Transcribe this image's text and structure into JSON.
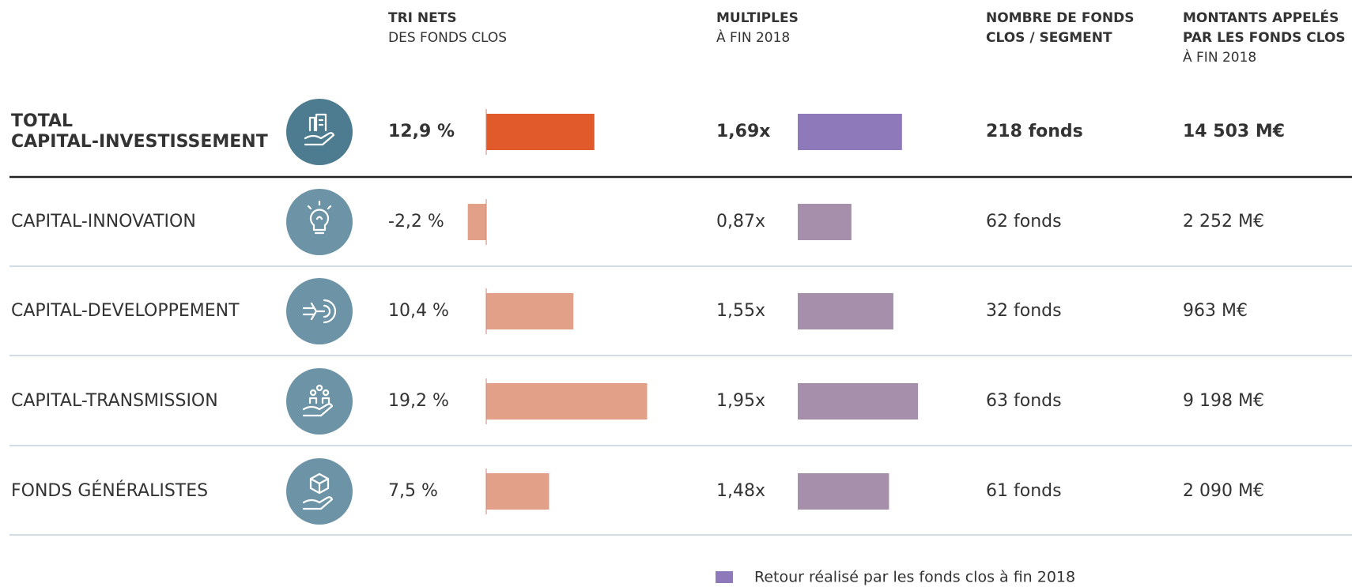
{
  "table": {
    "columns": [
      {
        "bold": [
          "TRI NETS"
        ],
        "normal": [
          "DES FONDS CLOS"
        ]
      },
      {
        "bold": [
          "MULTIPLES"
        ],
        "normal": [
          "À FIN 2018"
        ]
      },
      {
        "bold": [
          "NOMBRE DE FONDS",
          "CLOS / SEGMENT"
        ],
        "normal": []
      },
      {
        "bold": [
          "MONTANTS APPELÉS",
          "PAR LES FONDS CLOS"
        ],
        "normal": [
          "À FIN 2018"
        ]
      }
    ],
    "rows": [
      {
        "label": [
          "TOTAL",
          "CAPITAL-INVESTISSEMENT"
        ],
        "tri": {
          "value": 12.9,
          "label": "12,9 %"
        },
        "multiple": {
          "value": 1.69,
          "label": "1,69x"
        },
        "funds": "218 fonds",
        "amount": "14 503 M€"
      },
      {
        "label": [
          "CAPITAL-INNOVATION"
        ],
        "tri": {
          "value": -2.2,
          "label": "-2,2 %"
        },
        "multiple": {
          "value": 0.87,
          "label": "0,87x"
        },
        "funds": "62 fonds",
        "amount": "2 252 M€"
      },
      {
        "label": [
          "CAPITAL-DEVELOPPEMENT"
        ],
        "tri": {
          "value": 10.4,
          "label": "10,4 %"
        },
        "multiple": {
          "value": 1.55,
          "label": "1,55x"
        },
        "funds": "32 fonds",
        "amount": "963 M€"
      },
      {
        "label": [
          "CAPITAL-TRANSMISSION"
        ],
        "tri": {
          "value": 19.2,
          "label": "19,2 %"
        },
        "multiple": {
          "value": 1.95,
          "label": "1,95x"
        },
        "funds": "63 fonds",
        "amount": "9 198 M€"
      },
      {
        "label": [
          "FONDS GÉNÉRALISTES"
        ],
        "tri": {
          "value": 7.5,
          "label": "7,5 %"
        },
        "multiple": {
          "value": 1.48,
          "label": "1,48x"
        },
        "funds": "61 fonds",
        "amount": "2 090 M€"
      }
    ],
    "colors": {
      "tri_total": "#e05a2b",
      "tri": "#e3a088",
      "multiple_total": "#8e79bb",
      "multiple": "#a68fab",
      "icon_total": "#4d7b8f",
      "icon": "#6c93a6"
    }
  },
  "legend": {
    "text": "Retour réalisé par les fonds clos à fin 2018",
    "color": "#8e79bb"
  }
}
